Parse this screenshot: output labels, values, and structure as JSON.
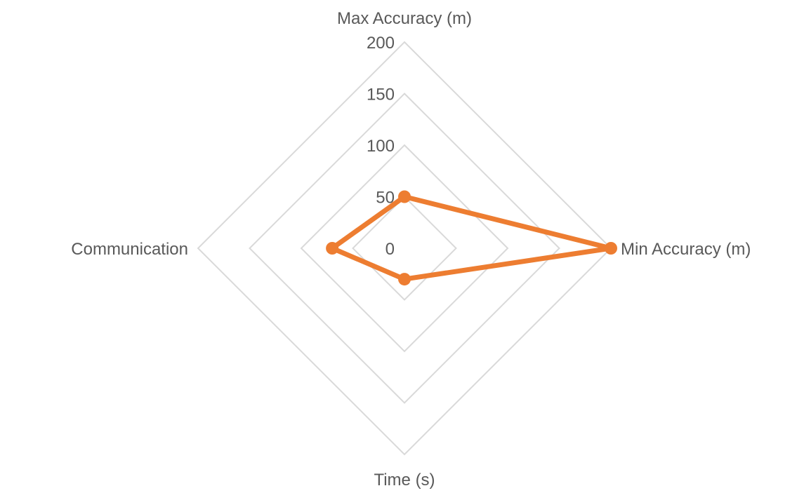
{
  "chart_data": {
    "type": "radar",
    "axes": [
      "Max Accuracy (m)",
      "Min Accuracy (m)",
      "Time (s)",
      "Communication"
    ],
    "ticks": [
      "0",
      "50",
      "100",
      "150",
      "200"
    ],
    "tick_values": [
      0,
      50,
      100,
      150,
      200
    ],
    "range": [
      0,
      200
    ],
    "series": [
      {
        "values": [
          50,
          200,
          30,
          70
        ],
        "color": "#ed7d31"
      }
    ],
    "grid": true,
    "legend": "none"
  }
}
